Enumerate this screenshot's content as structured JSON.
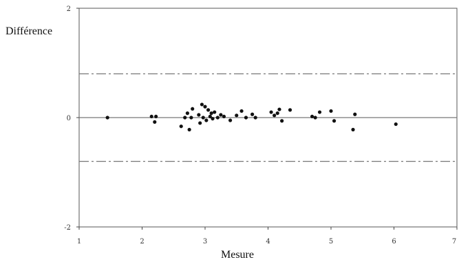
{
  "chart_data": {
    "type": "scatter",
    "title": "",
    "xlabel": "Mesure",
    "ylabel": "Différence",
    "xlim": [
      1,
      7
    ],
    "ylim": [
      -2,
      2
    ],
    "x_ticks": [
      "1",
      "2",
      "3",
      "4",
      "5",
      "6",
      "7"
    ],
    "y_ticks": [
      "2",
      "0",
      "-2"
    ],
    "x_tick_values": [
      1,
      2,
      3,
      4,
      5,
      6,
      7
    ],
    "y_tick_values": [
      2,
      0,
      -2
    ],
    "grid": false,
    "legend": "none",
    "colors": {
      "points": "#111111",
      "reference_lines": "#777777",
      "axes": "#444444"
    },
    "reference_lines": [
      {
        "y": 0.8,
        "style": "dash-dot"
      },
      {
        "y": 0,
        "style": "solid"
      },
      {
        "y": -0.8,
        "style": "dash-dot"
      }
    ],
    "points": [
      {
        "x": 1.45,
        "y": 0.0
      },
      {
        "x": 2.15,
        "y": 0.02
      },
      {
        "x": 2.2,
        "y": -0.08
      },
      {
        "x": 2.22,
        "y": 0.02
      },
      {
        "x": 2.62,
        "y": -0.16
      },
      {
        "x": 2.68,
        "y": 0.0
      },
      {
        "x": 2.72,
        "y": 0.08
      },
      {
        "x": 2.75,
        "y": -0.22
      },
      {
        "x": 2.78,
        "y": 0.0
      },
      {
        "x": 2.8,
        "y": 0.16
      },
      {
        "x": 2.9,
        "y": 0.05
      },
      {
        "x": 2.92,
        "y": -0.1
      },
      {
        "x": 2.95,
        "y": 0.24
      },
      {
        "x": 2.97,
        "y": 0.0
      },
      {
        "x": 3.0,
        "y": 0.2
      },
      {
        "x": 3.02,
        "y": -0.05
      },
      {
        "x": 3.05,
        "y": 0.14
      },
      {
        "x": 3.08,
        "y": 0.02
      },
      {
        "x": 3.1,
        "y": 0.08
      },
      {
        "x": 3.12,
        "y": -0.02
      },
      {
        "x": 3.15,
        "y": 0.1
      },
      {
        "x": 3.2,
        "y": 0.0
      },
      {
        "x": 3.25,
        "y": 0.05
      },
      {
        "x": 3.3,
        "y": 0.02
      },
      {
        "x": 3.4,
        "y": -0.05
      },
      {
        "x": 3.5,
        "y": 0.04
      },
      {
        "x": 3.58,
        "y": 0.12
      },
      {
        "x": 3.65,
        "y": 0.0
      },
      {
        "x": 3.75,
        "y": 0.06
      },
      {
        "x": 3.8,
        "y": 0.0
      },
      {
        "x": 4.05,
        "y": 0.1
      },
      {
        "x": 4.1,
        "y": 0.04
      },
      {
        "x": 4.15,
        "y": 0.08
      },
      {
        "x": 4.18,
        "y": 0.15
      },
      {
        "x": 4.22,
        "y": -0.06
      },
      {
        "x": 4.35,
        "y": 0.14
      },
      {
        "x": 4.7,
        "y": 0.02
      },
      {
        "x": 4.75,
        "y": 0.0
      },
      {
        "x": 4.82,
        "y": 0.1
      },
      {
        "x": 5.0,
        "y": 0.12
      },
      {
        "x": 5.05,
        "y": -0.06
      },
      {
        "x": 5.35,
        "y": -0.22
      },
      {
        "x": 5.38,
        "y": 0.06
      },
      {
        "x": 6.03,
        "y": -0.12
      }
    ]
  }
}
